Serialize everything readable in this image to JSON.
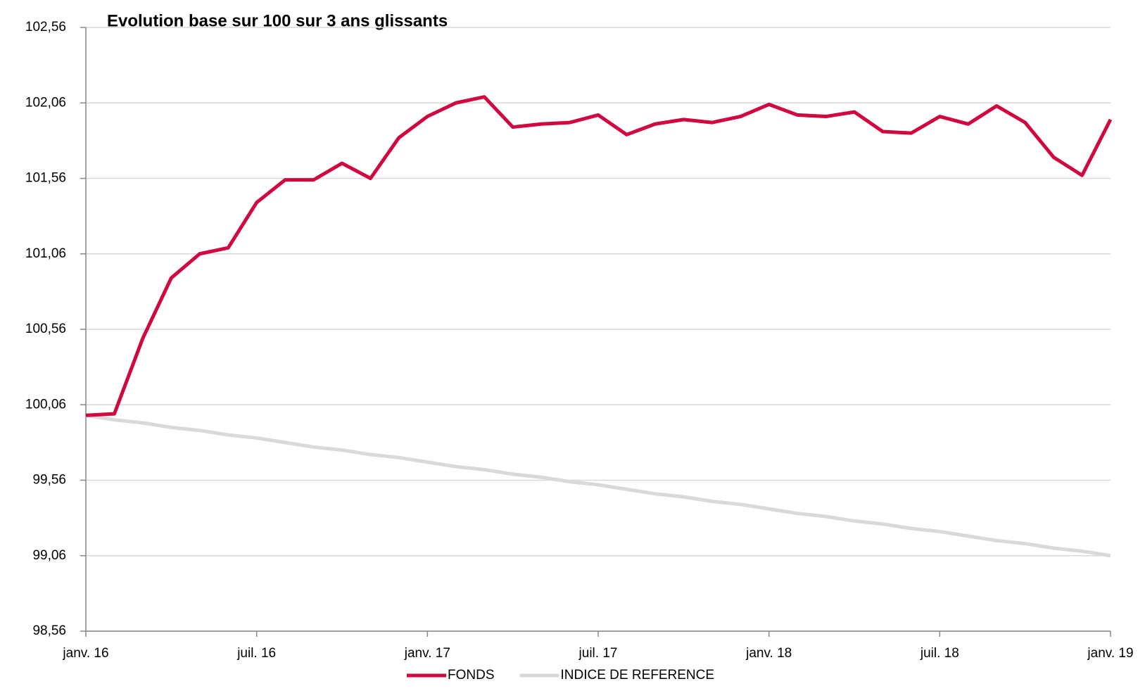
{
  "chart_data": {
    "type": "line",
    "title": "Evolution base sur 100 sur 3 ans glissants",
    "x": [
      "2016-01",
      "2016-02",
      "2016-03",
      "2016-04",
      "2016-05",
      "2016-06",
      "2016-07",
      "2016-08",
      "2016-09",
      "2016-10",
      "2016-11",
      "2016-12",
      "2017-01",
      "2017-02",
      "2017-03",
      "2017-04",
      "2017-05",
      "2017-06",
      "2017-07",
      "2017-08",
      "2017-09",
      "2017-10",
      "2017-11",
      "2017-12",
      "2018-01",
      "2018-02",
      "2018-03",
      "2018-04",
      "2018-05",
      "2018-06",
      "2018-07",
      "2018-08",
      "2018-09",
      "2018-10",
      "2018-11",
      "2018-12",
      "2019-01"
    ],
    "series": [
      {
        "name": "FONDS",
        "color": "#d1083f",
        "values": [
          99.99,
          100.0,
          100.5,
          100.9,
          101.06,
          101.1,
          101.4,
          101.55,
          101.55,
          101.66,
          101.56,
          101.83,
          101.97,
          102.06,
          102.1,
          101.9,
          101.92,
          101.93,
          101.98,
          101.85,
          101.92,
          101.95,
          101.93,
          101.97,
          102.05,
          101.98,
          101.97,
          102.0,
          101.87,
          101.86,
          101.97,
          101.92,
          102.04,
          101.93,
          101.7,
          101.58,
          101.95
        ]
      },
      {
        "name": "INDICE DE REFERENCE",
        "color": "#d9d9d9",
        "values": [
          99.99,
          99.96,
          99.94,
          99.91,
          99.89,
          99.86,
          99.84,
          99.81,
          99.78,
          99.76,
          99.73,
          99.71,
          99.68,
          99.65,
          99.63,
          99.6,
          99.58,
          99.55,
          99.53,
          99.5,
          99.47,
          99.45,
          99.42,
          99.4,
          99.37,
          99.34,
          99.32,
          99.29,
          99.27,
          99.24,
          99.22,
          99.19,
          99.16,
          99.14,
          99.11,
          99.09,
          99.06
        ]
      }
    ],
    "xlim": [
      "2016-01",
      "2019-01"
    ],
    "xticks": [
      {
        "value": "2016-01",
        "label": "janv. 16"
      },
      {
        "value": "2016-07",
        "label": "juil. 16"
      },
      {
        "value": "2017-01",
        "label": "janv. 17"
      },
      {
        "value": "2017-07",
        "label": "juil. 17"
      },
      {
        "value": "2018-01",
        "label": "janv. 18"
      },
      {
        "value": "2018-07",
        "label": "juil. 18"
      },
      {
        "value": "2019-01",
        "label": "janv. 19"
      }
    ],
    "ylim": [
      98.56,
      102.56
    ],
    "yticks": [
      {
        "value": 98.56,
        "label": "98,56"
      },
      {
        "value": 99.06,
        "label": "99,06"
      },
      {
        "value": 99.56,
        "label": "99,56"
      },
      {
        "value": 100.06,
        "label": "100,06"
      },
      {
        "value": 100.56,
        "label": "100,56"
      },
      {
        "value": 101.06,
        "label": "101,06"
      },
      {
        "value": 101.56,
        "label": "101,56"
      },
      {
        "value": 102.06,
        "label": "102,06"
      },
      {
        "value": 102.56,
        "label": "102,56"
      }
    ],
    "grid": true,
    "legend": "bottom"
  }
}
